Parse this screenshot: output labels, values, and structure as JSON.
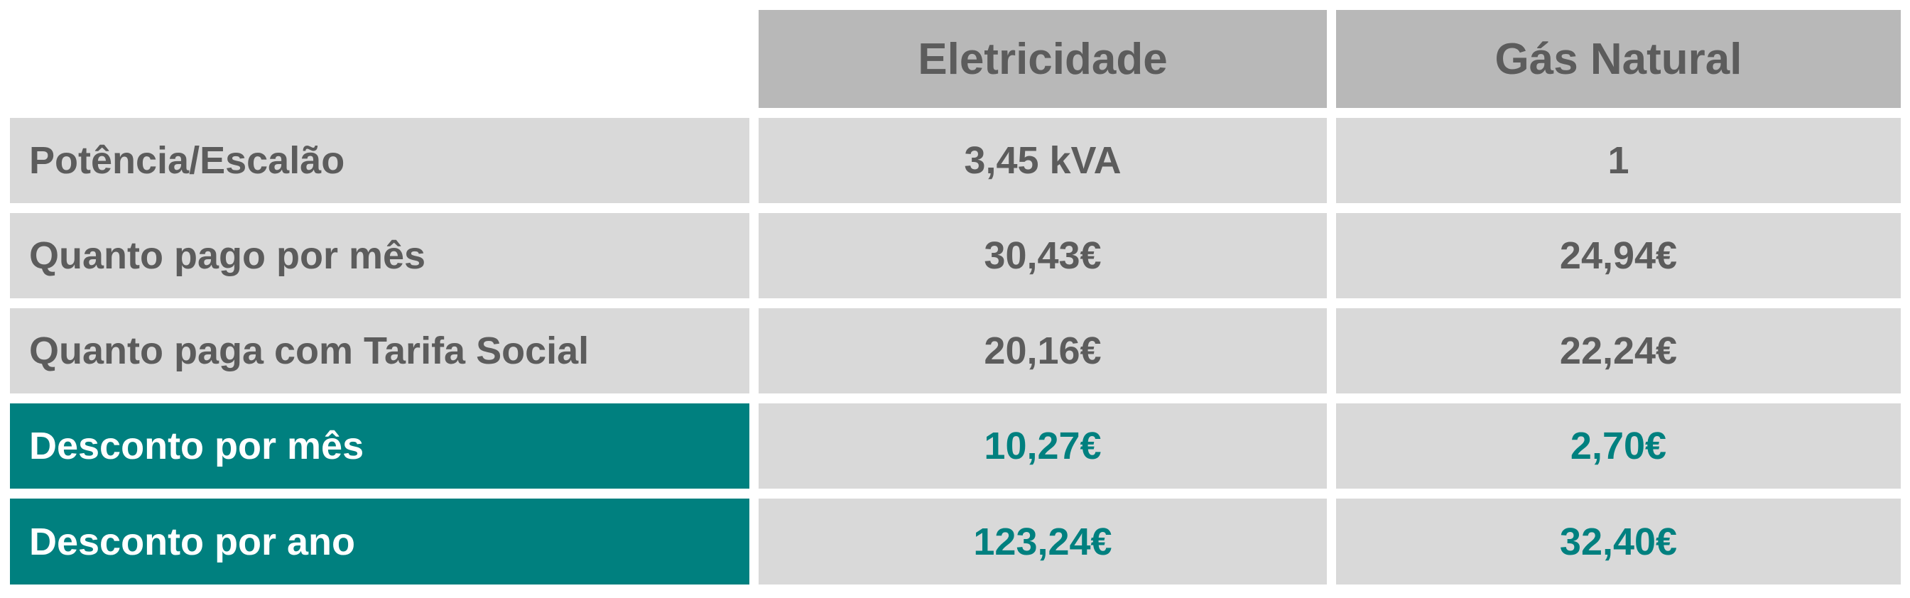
{
  "table": {
    "columns": [
      "Eletricidade",
      "Gás Natural"
    ],
    "rows": [
      {
        "label": "Potência/Escalão",
        "values": [
          "3,45 kVA",
          "1"
        ],
        "highlight": false
      },
      {
        "label": "Quanto pago por mês",
        "values": [
          "30,43€",
          "24,94€"
        ],
        "highlight": false
      },
      {
        "label": "Quanto paga com Tarifa Social",
        "values": [
          "20,16€",
          "22,24€"
        ],
        "highlight": false
      },
      {
        "label": "Desconto por mês",
        "values": [
          "10,27€",
          "2,70€"
        ],
        "highlight": true
      },
      {
        "label": "Desconto por ano",
        "values": [
          "123,24€",
          "32,40€"
        ],
        "highlight": true
      }
    ]
  },
  "colors": {
    "header_bg": "#b8b8b8",
    "cell_bg": "#d9d9d9",
    "text": "#5c5c5c",
    "accent": "#00807f"
  }
}
